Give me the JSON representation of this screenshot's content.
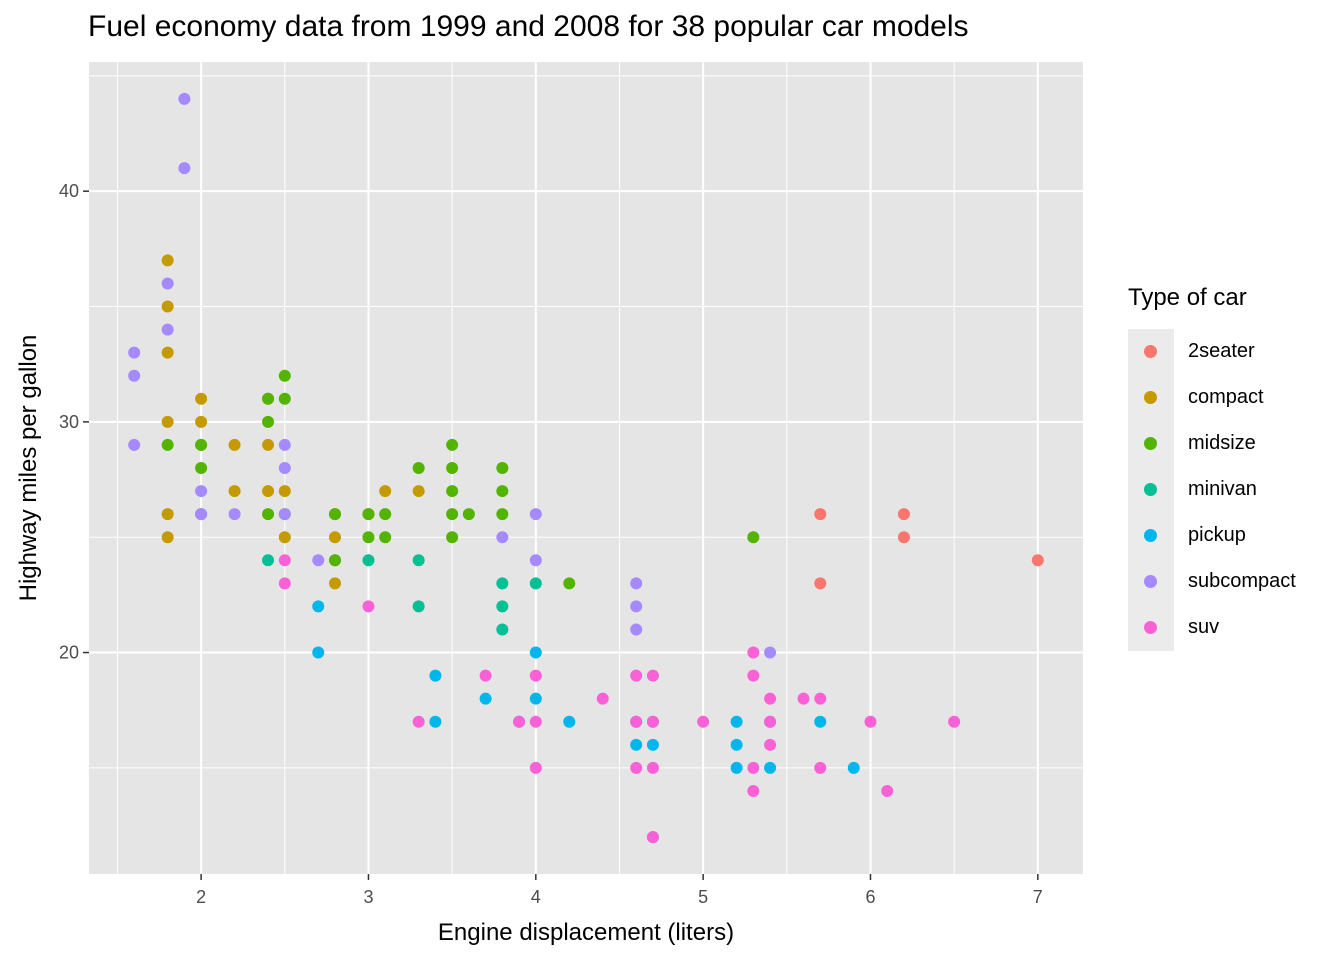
{
  "chart_data": {
    "type": "scatter",
    "title": "Fuel economy data from 1999 and 2008 for 38 popular car models",
    "xlabel": "Engine displacement (liters)",
    "ylabel": "Highway miles per gallon",
    "xlim": [
      1.33,
      7.27
    ],
    "ylim": [
      10.4,
      45.6
    ],
    "xticks": [
      2,
      3,
      4,
      5,
      6,
      7
    ],
    "yticks": [
      20,
      30,
      40
    ],
    "grid": true,
    "background": "#e5e5e5",
    "legend": {
      "title": "Type of car",
      "placement": "right",
      "entries": [
        "2seater",
        "compact",
        "midsize",
        "minivan",
        "pickup",
        "subcompact",
        "suv"
      ]
    },
    "colors": {
      "2seater": "#f8766d",
      "compact": "#c49a00",
      "midsize": "#53b400",
      "minivan": "#00c094",
      "pickup": "#00b6eb",
      "subcompact": "#a58aff",
      "suv": "#fb61d7"
    },
    "series": [
      {
        "name": "2seater",
        "points": [
          [
            5.7,
            26
          ],
          [
            5.7,
            23
          ],
          [
            6.2,
            26
          ],
          [
            6.2,
            25
          ],
          [
            7.0,
            24
          ]
        ]
      },
      {
        "name": "compact",
        "points": [
          [
            1.8,
            37
          ],
          [
            1.8,
            35
          ],
          [
            1.8,
            33
          ],
          [
            1.8,
            30
          ],
          [
            1.8,
            26
          ],
          [
            1.8,
            25
          ],
          [
            2.0,
            31
          ],
          [
            2.0,
            30
          ],
          [
            2.0,
            29
          ],
          [
            2.2,
            29
          ],
          [
            2.2,
            27
          ],
          [
            2.4,
            31
          ],
          [
            2.4,
            29
          ],
          [
            2.4,
            27
          ],
          [
            2.5,
            25
          ],
          [
            2.5,
            27
          ],
          [
            2.8,
            26
          ],
          [
            2.8,
            25
          ],
          [
            2.8,
            24
          ],
          [
            2.8,
            23
          ],
          [
            3.0,
            26
          ],
          [
            3.1,
            27
          ],
          [
            3.3,
            27
          ]
        ]
      },
      {
        "name": "midsize",
        "points": [
          [
            1.8,
            29
          ],
          [
            2.0,
            29
          ],
          [
            2.0,
            28
          ],
          [
            2.0,
            26
          ],
          [
            2.4,
            31
          ],
          [
            2.4,
            30
          ],
          [
            2.4,
            26
          ],
          [
            2.5,
            32
          ],
          [
            2.5,
            31
          ],
          [
            2.5,
            26
          ],
          [
            2.8,
            26
          ],
          [
            2.8,
            24
          ],
          [
            3.0,
            26
          ],
          [
            3.0,
            25
          ],
          [
            3.1,
            26
          ],
          [
            3.1,
            25
          ],
          [
            3.3,
            28
          ],
          [
            3.5,
            29
          ],
          [
            3.5,
            28
          ],
          [
            3.5,
            27
          ],
          [
            3.5,
            26
          ],
          [
            3.5,
            25
          ],
          [
            3.6,
            26
          ],
          [
            3.8,
            28
          ],
          [
            3.8,
            27
          ],
          [
            3.8,
            26
          ],
          [
            4.2,
            23
          ],
          [
            5.3,
            25
          ]
        ]
      },
      {
        "name": "minivan",
        "points": [
          [
            2.4,
            24
          ],
          [
            3.0,
            24
          ],
          [
            3.3,
            24
          ],
          [
            3.3,
            22
          ],
          [
            3.8,
            23
          ],
          [
            3.8,
            22
          ],
          [
            3.8,
            21
          ],
          [
            4.0,
            23
          ]
        ]
      },
      {
        "name": "pickup",
        "points": [
          [
            2.7,
            22
          ],
          [
            2.7,
            20
          ],
          [
            3.4,
            19
          ],
          [
            3.4,
            17
          ],
          [
            3.7,
            18
          ],
          [
            3.9,
            17
          ],
          [
            4.0,
            20
          ],
          [
            4.0,
            18
          ],
          [
            4.2,
            17
          ],
          [
            4.6,
            17
          ],
          [
            4.6,
            16
          ],
          [
            4.7,
            17
          ],
          [
            4.7,
            16
          ],
          [
            4.7,
            12
          ],
          [
            5.2,
            17
          ],
          [
            5.2,
            16
          ],
          [
            5.2,
            15
          ],
          [
            5.4,
            17
          ],
          [
            5.4,
            15
          ],
          [
            5.7,
            17
          ],
          [
            5.9,
            15
          ]
        ]
      },
      {
        "name": "subcompact",
        "points": [
          [
            1.6,
            33
          ],
          [
            1.6,
            32
          ],
          [
            1.6,
            29
          ],
          [
            1.8,
            36
          ],
          [
            1.8,
            34
          ],
          [
            1.9,
            44
          ],
          [
            1.9,
            41
          ],
          [
            2.0,
            27
          ],
          [
            2.0,
            26
          ],
          [
            2.2,
            26
          ],
          [
            2.5,
            29
          ],
          [
            2.5,
            28
          ],
          [
            2.5,
            26
          ],
          [
            2.7,
            24
          ],
          [
            3.8,
            25
          ],
          [
            4.0,
            26
          ],
          [
            4.0,
            24
          ],
          [
            4.6,
            23
          ],
          [
            4.6,
            22
          ],
          [
            4.6,
            21
          ],
          [
            5.4,
            20
          ]
        ]
      },
      {
        "name": "suv",
        "points": [
          [
            2.5,
            24
          ],
          [
            2.5,
            23
          ],
          [
            3.0,
            22
          ],
          [
            3.3,
            17
          ],
          [
            3.7,
            19
          ],
          [
            3.9,
            17
          ],
          [
            4.0,
            19
          ],
          [
            4.0,
            17
          ],
          [
            4.0,
            15
          ],
          [
            4.4,
            18
          ],
          [
            4.6,
            19
          ],
          [
            4.6,
            17
          ],
          [
            4.6,
            15
          ],
          [
            4.7,
            19
          ],
          [
            4.7,
            17
          ],
          [
            4.7,
            15
          ],
          [
            4.7,
            12
          ],
          [
            5.0,
            17
          ],
          [
            5.3,
            20
          ],
          [
            5.3,
            19
          ],
          [
            5.3,
            15
          ],
          [
            5.3,
            14
          ],
          [
            5.4,
            18
          ],
          [
            5.4,
            17
          ],
          [
            5.4,
            16
          ],
          [
            5.6,
            18
          ],
          [
            5.7,
            18
          ],
          [
            5.7,
            15
          ],
          [
            6.0,
            17
          ],
          [
            6.1,
            14
          ],
          [
            6.5,
            17
          ]
        ]
      }
    ]
  }
}
